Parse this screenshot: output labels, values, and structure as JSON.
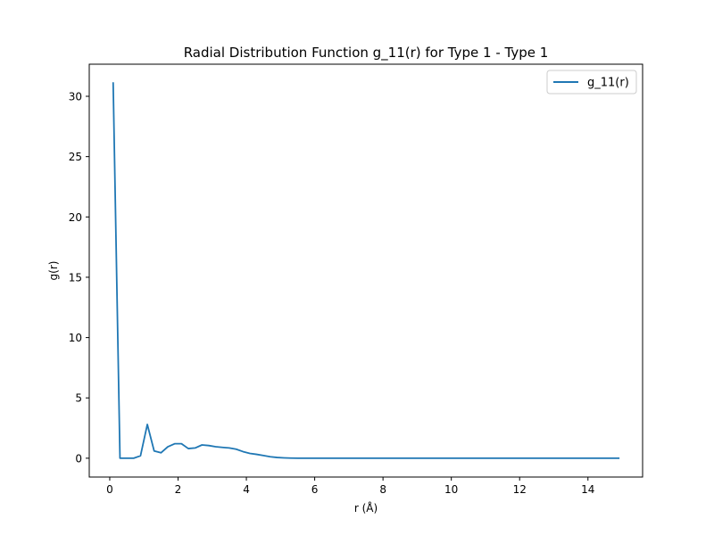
{
  "chart_data": {
    "type": "line",
    "title": "Radial Distribution Function g_11(r) for Type 1 - Type 1",
    "xlabel": "r (Å)",
    "ylabel": "g(r)",
    "xlim": [
      -0.6,
      15.6
    ],
    "ylim": [
      -1.56,
      32.66
    ],
    "xticks": [
      0,
      2,
      4,
      6,
      8,
      10,
      12,
      14
    ],
    "yticks": [
      0,
      5,
      10,
      15,
      20,
      25,
      30
    ],
    "grid": false,
    "legend_position": "top-right",
    "series": [
      {
        "name": "g_11(r)",
        "color": "#1f77b4",
        "x": [
          0.1,
          0.3,
          0.5,
          0.7,
          0.9,
          1.1,
          1.3,
          1.5,
          1.7,
          1.9,
          2.1,
          2.3,
          2.5,
          2.7,
          2.9,
          3.1,
          3.3,
          3.5,
          3.7,
          3.9,
          4.1,
          4.3,
          4.5,
          4.7,
          4.9,
          5.1,
          5.3,
          5.5,
          5.7,
          6.0,
          7.0,
          8.0,
          9.0,
          10.0,
          11.0,
          12.0,
          13.0,
          14.0,
          14.9
        ],
        "values": [
          31.1,
          0.0,
          0.0,
          0.0,
          0.2,
          2.8,
          0.6,
          0.45,
          0.95,
          1.2,
          1.2,
          0.8,
          0.85,
          1.1,
          1.05,
          0.95,
          0.9,
          0.85,
          0.75,
          0.55,
          0.4,
          0.32,
          0.22,
          0.12,
          0.06,
          0.03,
          0.01,
          0.0,
          0.0,
          0.0,
          0.0,
          0.0,
          0.0,
          0.0,
          0.0,
          0.0,
          0.0,
          0.0,
          0.0
        ]
      }
    ]
  }
}
